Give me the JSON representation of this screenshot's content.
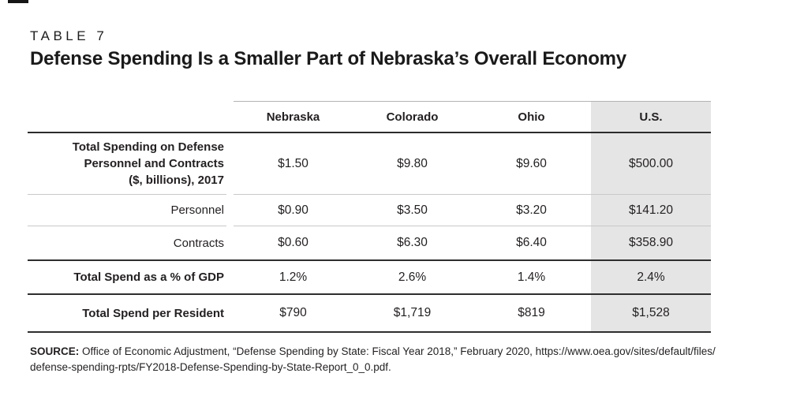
{
  "chart_data": {
    "type": "table",
    "table_number": "TABLE 7",
    "title": "Defense Spending Is a Smaller Part of Nebraska’s Overall Economy",
    "columns": [
      "Nebraska",
      "Colorado",
      "Ohio",
      "U.S."
    ],
    "highlight_column": "U.S.",
    "highlight_bg": "#e5e5e5",
    "rows": [
      {
        "label": "Total Spending on Defense Personnel and Contracts ($, billions), 2017",
        "label_lines": [
          "Total Spending on Defense",
          "Personnel and Contracts",
          "($, billions), 2017"
        ],
        "values": [
          "$1.50",
          "$9.80",
          "$9.60",
          "$500.00"
        ]
      },
      {
        "label": "Personnel",
        "values": [
          "$0.90",
          "$3.50",
          "$3.20",
          "$141.20"
        ]
      },
      {
        "label": "Contracts",
        "values": [
          "$0.60",
          "$6.30",
          "$6.40",
          "$358.90"
        ]
      },
      {
        "label": "Total Spend as a % of GDP",
        "values": [
          "1.2%",
          "2.6%",
          "1.4%",
          "2.4%"
        ]
      },
      {
        "label": "Total Spend per Resident",
        "values": [
          "$790",
          "$1,719",
          "$819",
          "$1,528"
        ]
      }
    ],
    "source_note": {
      "label": "SOURCE:",
      "line1": "Office of Economic Adjustment, “Defense Spending by State: Fiscal Year 2018,” February 2020, https://www.oea.gov/sites/default/files/",
      "line2": "defense-spending-rpts/FY2018-Defense-Spending-by-State-Report_0_0.pdf."
    },
    "colors": {
      "text": "#231f20",
      "rule_dark": "#2e2e2e",
      "rule_light": "#c9c9c9",
      "rule_top": "#b3b3b3",
      "highlight_bg": "#e5e5e5"
    }
  }
}
